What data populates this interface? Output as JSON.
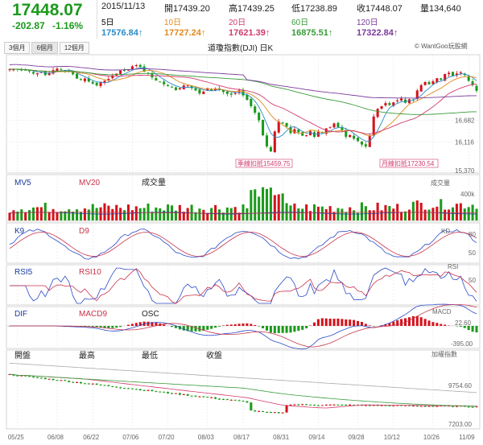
{
  "header": {
    "price": "17448.07",
    "change": "-202.87",
    "change_pct": "-1.16%",
    "date": "2015/11/13",
    "open_label": "開",
    "open": "17439.20",
    "high_label": "高",
    "high": "17439.25",
    "low_label": "低",
    "low": "17238.89",
    "close_label": "收",
    "close": "17448.07",
    "volume_label": "量",
    "volume": "134,640"
  },
  "moving_averages": [
    {
      "label": "5日",
      "value": "17576.84↑",
      "color": "#2a8bc8"
    },
    {
      "label": "10日",
      "value": "17727.24↑",
      "color": "#e08a1e"
    },
    {
      "label": "20日",
      "value": "17621.39↑",
      "color": "#d13a6c"
    },
    {
      "label": "60日",
      "value": "16875.51↑",
      "color": "#3a9a3a"
    },
    {
      "label": "120日",
      "value": "17322.84↑",
      "color": "#7a3a9a"
    }
  ],
  "tabs": [
    "3個月",
    "6個月",
    "12個月"
  ],
  "chart_title": "道瓊指數(DJI) 日K",
  "credit": "© WantGoo玩股網",
  "colors": {
    "up": "#d4121b",
    "down": "#1c9a1c",
    "ma5": "#2a8bc8",
    "ma10": "#e08a1e",
    "ma20": "#d13a6c",
    "ma60": "#3a9a3a",
    "ma120": "#7a3a9a",
    "k": "#2a4ac8",
    "d": "#c8324a",
    "grid": "#e0e0e0"
  },
  "chart_data": [
    {
      "type": "candlestick",
      "title": "道瓊指數(DJI) 日K",
      "x_ticks": [
        "05/25",
        "06/08",
        "06/22",
        "07/06",
        "07/20",
        "08/03",
        "08/17",
        "08/31",
        "09/14",
        "09/28",
        "10/12",
        "10/26",
        "11/09"
      ],
      "y_ticks": [
        16682,
        16116,
        15370
      ],
      "ylim": [
        15370,
        18350
      ],
      "annotations": [
        {
          "text": "季線扣抵15459.75"
        },
        {
          "text": "月線扣抵17230.54"
        }
      ],
      "close_path": [
        18010,
        18020,
        18015,
        17980,
        17990,
        17960,
        17900,
        17910,
        17940,
        17860,
        17920,
        17990,
        18030,
        18000,
        17980,
        17960,
        17880,
        17770,
        17730,
        17770,
        17690,
        17640,
        17590,
        17680,
        17710,
        17760,
        17850,
        17900,
        17980,
        17970,
        18000,
        18090,
        18120,
        18070,
        17950,
        17900,
        17800,
        17720,
        17690,
        17620,
        17570,
        17550,
        17470,
        17520,
        17590,
        17590,
        17520,
        17460,
        17380,
        17430,
        17520,
        17460,
        17510,
        17480,
        17420,
        17370,
        17350,
        17400,
        17460,
        17330,
        17210,
        17050,
        16880,
        16680,
        16290,
        16000,
        15870,
        16390,
        16650,
        16600,
        16520,
        16350,
        16450,
        16370,
        16280,
        16290,
        16400,
        16250,
        16380,
        16360,
        16470,
        16510,
        16600,
        16500,
        16430,
        16250,
        16300,
        16200,
        16140,
        16050,
        16000,
        16280,
        16780,
        16980,
        17050,
        17130,
        17080,
        17150,
        17200,
        17250,
        17140,
        17230,
        17220,
        17460,
        17600,
        17680,
        17620,
        17700,
        17780,
        17740,
        17890,
        17920,
        17840,
        17900,
        17930,
        17860,
        17710,
        17600,
        17450
      ]
    },
    {
      "type": "bar",
      "title": "成交量",
      "series_labels": [
        "MV5",
        "MV20"
      ],
      "ylabel": "成交量",
      "y_ticks": [
        "400k"
      ]
    },
    {
      "type": "line",
      "title": "KD",
      "series_labels": [
        "K9",
        "D9"
      ],
      "y_ticks": [
        80,
        50
      ]
    },
    {
      "type": "line",
      "title": "RSI",
      "series_labels": [
        "RSI5",
        "RSI10"
      ],
      "y_ticks": [
        50
      ]
    },
    {
      "type": "bar",
      "title": "MACD",
      "series_labels": [
        "DIF",
        "MACD9",
        "OSC"
      ],
      "y_ticks": [
        22.6,
        -395.0
      ]
    },
    {
      "type": "line",
      "title": "加權指數",
      "series_labels": [
        "開盤",
        "最高",
        "最低",
        "收盤"
      ],
      "y_ticks": [
        9754.6,
        7203.0
      ]
    }
  ],
  "panels": {
    "vol": {
      "l1": "MV5",
      "l2": "MV20",
      "l3": "成交量",
      "right": "成交量",
      "tick": "400k"
    },
    "kd": {
      "l1": "K9",
      "l2": "D9",
      "right": "KD",
      "t1": "80",
      "t2": "50"
    },
    "rsi": {
      "l1": "RSI5",
      "l2": "RSI10",
      "right": "RSI",
      "t1": "50"
    },
    "macd": {
      "l1": "DIF",
      "l2": "MACD9",
      "l3": "OSC",
      "right": "MACD",
      "t1": "22.60",
      "t2": "-395.00"
    },
    "twse": {
      "l1": "開盤",
      "l2": "最高",
      "l3": "最低",
      "l4": "收盤",
      "right": "加權指數",
      "t1": "9754.60",
      "t2": "7203.00"
    }
  }
}
